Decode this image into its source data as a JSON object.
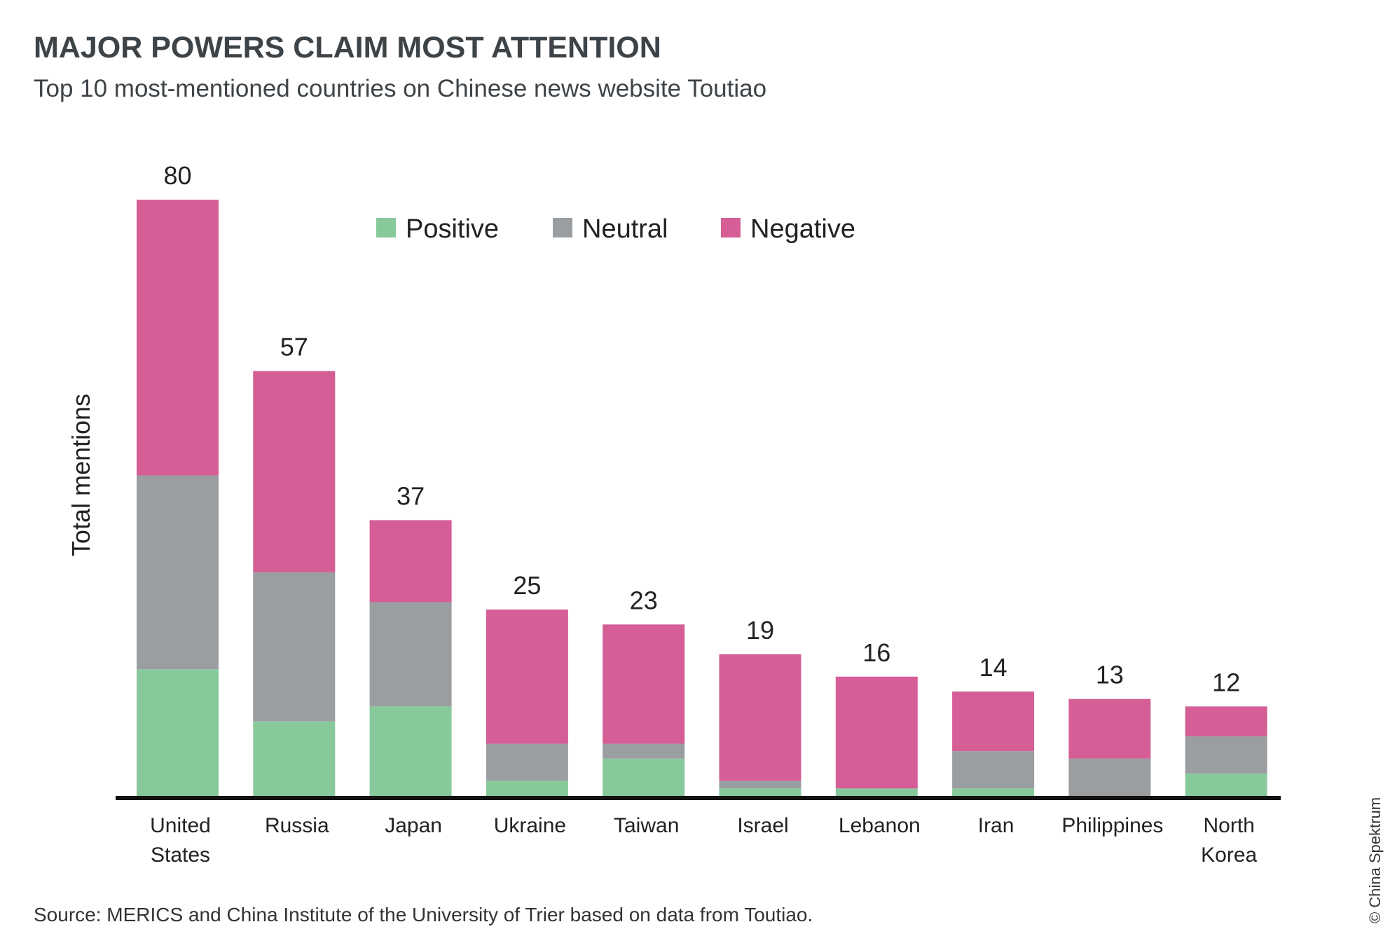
{
  "chart_data": {
    "type": "bar",
    "stacked": true,
    "title": "MAJOR POWERS CLAIM MOST ATTENTION",
    "subtitle": "Top 10 most-mentioned countries on Chinese news website Toutiao",
    "ylabel": "Total mentions",
    "xlabel": "",
    "ylim": [
      0,
      80
    ],
    "grid": false,
    "legend_position": "top-center",
    "categories": [
      [
        "United",
        "States"
      ],
      [
        "Russia"
      ],
      [
        "Japan"
      ],
      [
        "Ukraine"
      ],
      [
        "Taiwan"
      ],
      [
        "Israel"
      ],
      [
        "Lebanon"
      ],
      [
        "Iran"
      ],
      [
        "Philippines"
      ],
      [
        "North",
        "Korea"
      ]
    ],
    "totals": [
      80,
      57,
      37,
      25,
      23,
      19,
      16,
      14,
      13,
      12
    ],
    "series": [
      {
        "name": "Positive",
        "color": "#88c99c",
        "values": [
          17,
          10,
          12,
          2,
          5,
          1,
          1,
          1,
          0,
          3
        ]
      },
      {
        "name": "Neutral",
        "color": "#9a9ea1",
        "values": [
          26,
          20,
          14,
          5,
          2,
          1,
          0,
          5,
          5,
          5
        ]
      },
      {
        "name": "Negative",
        "color": "#d45e95",
        "values": [
          37,
          27,
          11,
          18,
          16,
          17,
          15,
          8,
          8,
          4
        ]
      }
    ],
    "source": "Source: MERICS and China Institute of the University of Trier based on data from Toutiao.",
    "credit": "© China Spektrum"
  }
}
